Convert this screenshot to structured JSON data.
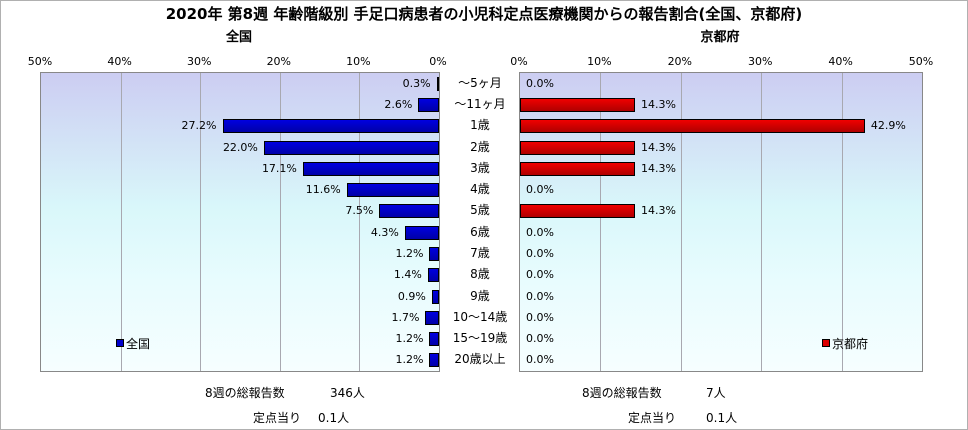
{
  "chart_data": {
    "type": "bar",
    "title": "2020年 第8週 年齢階級別 手足口病患者の小児科定点医療機関からの報告割合(全国、京都府)",
    "categories": [
      "～5ヶ月",
      "～11ヶ月",
      "1歳",
      "2歳",
      "3歳",
      "4歳",
      "5歳",
      "6歳",
      "7歳",
      "8歳",
      "9歳",
      "10～14歳",
      "15～19歳",
      "20歳以上"
    ],
    "xlim": [
      0,
      50
    ],
    "ticks": [
      "0%",
      "10%",
      "20%",
      "30%",
      "40%",
      "50%"
    ],
    "tick_values": [
      0,
      10,
      20,
      30,
      40,
      50
    ],
    "panels": [
      {
        "subtitle": "全国",
        "legend": "全国",
        "color": "#0000cc",
        "values": [
          0.3,
          2.6,
          27.2,
          22.0,
          17.1,
          11.6,
          7.5,
          4.3,
          1.2,
          1.4,
          0.9,
          1.7,
          1.2,
          1.2
        ],
        "labels": [
          "0.3%",
          "2.6%",
          "27.2%",
          "22.0%",
          "17.1%",
          "11.6%",
          "7.5%",
          "4.3%",
          "1.2%",
          "1.4%",
          "0.9%",
          "1.7%",
          "1.2%",
          "1.2%"
        ],
        "total_label": "8週の総報告数",
        "total_value": "346人",
        "per_label": "定点当り",
        "per_value": "0.1人"
      },
      {
        "subtitle": "京都府",
        "legend": "京都府",
        "color": "#dd0000",
        "values": [
          0.0,
          14.3,
          42.9,
          14.3,
          14.3,
          0.0,
          14.3,
          0.0,
          0.0,
          0.0,
          0.0,
          0.0,
          0.0,
          0.0
        ],
        "labels": [
          "0.0%",
          "14.3%",
          "42.9%",
          "14.3%",
          "14.3%",
          "0.0%",
          "14.3%",
          "0.0%",
          "0.0%",
          "0.0%",
          "0.0%",
          "0.0%",
          "0.0%",
          "0.0%"
        ],
        "total_label": "8週の総報告数",
        "total_value": "7人",
        "per_label": "定点当り",
        "per_value": "0.1人"
      }
    ]
  }
}
